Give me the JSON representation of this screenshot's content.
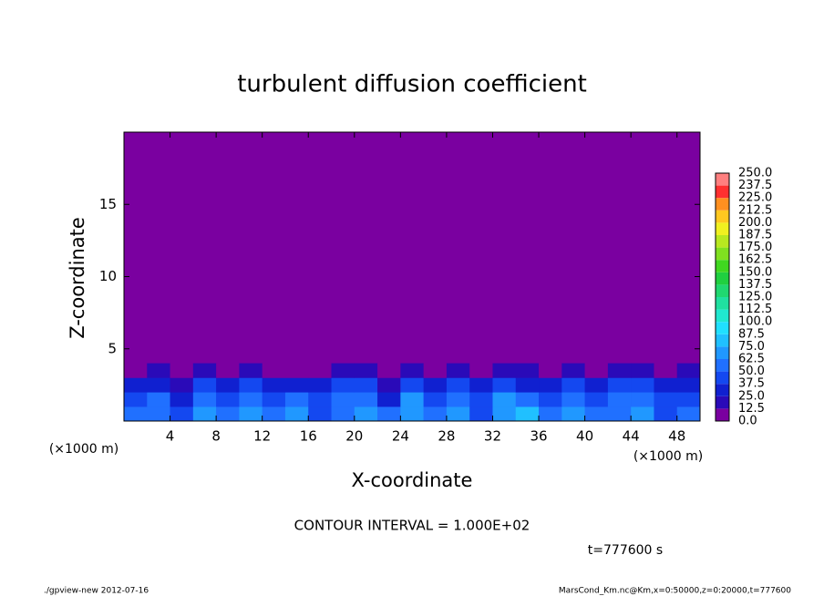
{
  "chart_data": {
    "type": "contour",
    "title": "turbulent diffusion coefficient",
    "x_label": "X-coordinate",
    "y_label": "Z-coordinate",
    "x_unit": "(×1000 m)",
    "xlim": [
      0,
      50
    ],
    "xticks": [
      4,
      8,
      12,
      16,
      20,
      24,
      28,
      32,
      36,
      40,
      44,
      48
    ],
    "ylim": [
      0,
      20
    ],
    "yticks": [
      5,
      10,
      15
    ],
    "x": [
      1,
      3,
      5,
      7,
      9,
      11,
      13,
      15,
      17,
      19,
      21,
      23,
      25,
      27,
      29,
      31,
      33,
      35,
      37,
      39,
      41,
      43,
      45,
      47,
      49
    ],
    "z": [
      0.5,
      1.5,
      2.5,
      3.5
    ],
    "values": [
      [
        55,
        62,
        48,
        70,
        58,
        66,
        52,
        74,
        45,
        60,
        68,
        50,
        72,
        56,
        64,
        48,
        70,
        80,
        58,
        66,
        52,
        62,
        70,
        48,
        60
      ],
      [
        40,
        52,
        35,
        58,
        45,
        62,
        38,
        50,
        42,
        55,
        60,
        36,
        64,
        48,
        52,
        40,
        66,
        58,
        44,
        54,
        38,
        50,
        62,
        42,
        48
      ],
      [
        28,
        36,
        22,
        40,
        30,
        45,
        26,
        35,
        30,
        42,
        38,
        20,
        48,
        34,
        40,
        28,
        44,
        36,
        32,
        40,
        26,
        38,
        45,
        30,
        36
      ],
      [
        8,
        14,
        6,
        18,
        10,
        20,
        5,
        12,
        4,
        22,
        16,
        6,
        24,
        10,
        18,
        8,
        20,
        14,
        6,
        22,
        12,
        16,
        20,
        8,
        14
      ]
    ],
    "levels": [
      {
        "value": 0,
        "label": "0.0"
      },
      12.5,
      {
        "value": 25,
        "label": "25.0"
      },
      37.5,
      {
        "value": 50,
        "label": "50.0"
      },
      62.5,
      {
        "value": 75,
        "label": "75.0"
      },
      87.5,
      {
        "value": 100,
        "label": "100.0"
      },
      112.5,
      {
        "value": 125,
        "label": "125.0"
      },
      137.5,
      {
        "value": 150,
        "label": "150.0"
      },
      162.5,
      {
        "value": 175,
        "label": "175.0"
      },
      187.5,
      {
        "value": 200,
        "label": "200.0"
      },
      212.5,
      {
        "value": 225,
        "label": "225.0"
      },
      237.5,
      {
        "value": 250,
        "label": "250.0"
      }
    ],
    "colors": [
      "#7a00a0",
      "#2a0ab8",
      "#1020d0",
      "#1448f0",
      "#2070ff",
      "#2098ff",
      "#20c0ff",
      "#20e0ff",
      "#20e8d0",
      "#20e0a0",
      "#20d870",
      "#20d040",
      "#40d820",
      "#80e020",
      "#b8e820",
      "#f0f020",
      "#ffc820",
      "#ff9020",
      "#ff3030",
      "#ff8080"
    ],
    "annotation": "CONTOUR INTERVAL = 1.000E+02",
    "time_label": "t=777600 s",
    "footer_left": "./gpview-new  2012-07-16",
    "footer_right": "MarsCond_Km.nc@Km,x=0:50000,z=0:20000,t=777600"
  }
}
